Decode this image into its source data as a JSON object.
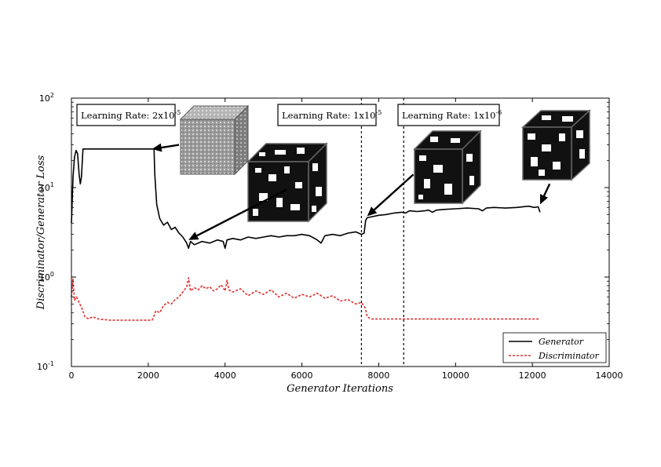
{
  "chart_data": {
    "type": "line",
    "title": "",
    "xlabel": "Generator Iterations",
    "ylabel": "Discriminator/Generator Loss",
    "yscale": "log",
    "xlim": [
      0,
      14000
    ],
    "ylim": [
      0.1,
      100
    ],
    "x_ticks": [
      "0",
      "2000",
      "4000",
      "6000",
      "8000",
      "10000",
      "12000",
      "14000"
    ],
    "y_ticks": [
      {
        "value": 0.1,
        "base": "10",
        "exp": "-1"
      },
      {
        "value": 1,
        "base": "10",
        "exp": "0"
      },
      {
        "value": 10,
        "base": "10",
        "exp": "1"
      },
      {
        "value": 100,
        "base": "10",
        "exp": "2"
      }
    ],
    "legend_position": "lower right",
    "grid": false,
    "series": [
      {
        "name": "Generator",
        "color": "#000000",
        "style": "solid",
        "points": [
          [
            0,
            4.0
          ],
          [
            40,
            13
          ],
          [
            80,
            22
          ],
          [
            120,
            26
          ],
          [
            160,
            24
          ],
          [
            200,
            14
          ],
          [
            230,
            11
          ],
          [
            260,
            13
          ],
          [
            300,
            27
          ],
          [
            2100,
            27
          ],
          [
            2150,
            27
          ],
          [
            2170,
            14
          ],
          [
            2220,
            6.5
          ],
          [
            2300,
            4.5
          ],
          [
            2400,
            3.8
          ],
          [
            2500,
            4.1
          ],
          [
            2600,
            3.4
          ],
          [
            2700,
            3.6
          ],
          [
            2800,
            3.1
          ],
          [
            2900,
            2.8
          ],
          [
            3000,
            2.4
          ],
          [
            3050,
            2.1
          ],
          [
            3100,
            2.5
          ],
          [
            3200,
            2.3
          ],
          [
            3400,
            2.5
          ],
          [
            3600,
            2.4
          ],
          [
            3800,
            2.6
          ],
          [
            3950,
            2.5
          ],
          [
            4000,
            2.1
          ],
          [
            4050,
            2.6
          ],
          [
            4200,
            2.7
          ],
          [
            4400,
            2.6
          ],
          [
            4600,
            2.8
          ],
          [
            4800,
            2.7
          ],
          [
            5000,
            2.8
          ],
          [
            5200,
            2.9
          ],
          [
            5400,
            2.8
          ],
          [
            5600,
            2.9
          ],
          [
            5800,
            2.9
          ],
          [
            6000,
            3.0
          ],
          [
            6200,
            2.9
          ],
          [
            6400,
            2.6
          ],
          [
            6500,
            2.4
          ],
          [
            6600,
            2.9
          ],
          [
            6800,
            3.0
          ],
          [
            7000,
            2.9
          ],
          [
            7200,
            3.1
          ],
          [
            7400,
            3.2
          ],
          [
            7550,
            3.0
          ],
          [
            7620,
            3.1
          ],
          [
            7660,
            4.3
          ],
          [
            7700,
            4.6
          ],
          [
            7800,
            4.7
          ],
          [
            8000,
            4.9
          ],
          [
            8200,
            5.0
          ],
          [
            8400,
            5.2
          ],
          [
            8600,
            5.3
          ],
          [
            8700,
            5.2
          ],
          [
            8800,
            5.5
          ],
          [
            9000,
            5.4
          ],
          [
            9200,
            5.5
          ],
          [
            9300,
            5.6
          ],
          [
            9400,
            5.3
          ],
          [
            9500,
            5.6
          ],
          [
            9700,
            5.7
          ],
          [
            10000,
            5.8
          ],
          [
            10300,
            5.9
          ],
          [
            10600,
            5.8
          ],
          [
            10700,
            5.5
          ],
          [
            10800,
            5.9
          ],
          [
            11000,
            6.0
          ],
          [
            11300,
            5.9
          ],
          [
            11600,
            6.0
          ],
          [
            11900,
            6.2
          ],
          [
            12050,
            6.0
          ],
          [
            12150,
            6.1
          ],
          [
            12200,
            5.3
          ]
        ]
      },
      {
        "name": "Discriminator",
        "color": "#e03030",
        "style": "dashed",
        "points": [
          [
            0,
            0.6
          ],
          [
            40,
            0.95
          ],
          [
            80,
            0.55
          ],
          [
            130,
            0.6
          ],
          [
            200,
            0.52
          ],
          [
            280,
            0.44
          ],
          [
            350,
            0.36
          ],
          [
            450,
            0.34
          ],
          [
            550,
            0.36
          ],
          [
            700,
            0.34
          ],
          [
            1000,
            0.33
          ],
          [
            1500,
            0.33
          ],
          [
            2100,
            0.33
          ],
          [
            2160,
            0.38
          ],
          [
            2200,
            0.42
          ],
          [
            2300,
            0.4
          ],
          [
            2400,
            0.48
          ],
          [
            2500,
            0.52
          ],
          [
            2600,
            0.5
          ],
          [
            2700,
            0.56
          ],
          [
            2800,
            0.6
          ],
          [
            2900,
            0.68
          ],
          [
            3000,
            0.78
          ],
          [
            3050,
            0.98
          ],
          [
            3100,
            0.7
          ],
          [
            3200,
            0.76
          ],
          [
            3300,
            0.72
          ],
          [
            3400,
            0.8
          ],
          [
            3500,
            0.74
          ],
          [
            3600,
            0.78
          ],
          [
            3700,
            0.7
          ],
          [
            3800,
            0.74
          ],
          [
            3900,
            0.82
          ],
          [
            4000,
            0.7
          ],
          [
            4050,
            0.92
          ],
          [
            4100,
            0.72
          ],
          [
            4200,
            0.68
          ],
          [
            4400,
            0.74
          ],
          [
            4600,
            0.62
          ],
          [
            4800,
            0.7
          ],
          [
            5000,
            0.64
          ],
          [
            5200,
            0.72
          ],
          [
            5400,
            0.6
          ],
          [
            5600,
            0.66
          ],
          [
            5800,
            0.58
          ],
          [
            6000,
            0.64
          ],
          [
            6200,
            0.6
          ],
          [
            6400,
            0.66
          ],
          [
            6600,
            0.58
          ],
          [
            6800,
            0.62
          ],
          [
            7000,
            0.54
          ],
          [
            7200,
            0.56
          ],
          [
            7400,
            0.5
          ],
          [
            7550,
            0.52
          ],
          [
            7650,
            0.45
          ],
          [
            7700,
            0.36
          ],
          [
            7800,
            0.34
          ],
          [
            8200,
            0.34
          ],
          [
            9000,
            0.34
          ],
          [
            10000,
            0.34
          ],
          [
            11000,
            0.34
          ],
          [
            12200,
            0.34
          ]
        ]
      }
    ],
    "vlines": [
      7550,
      8650
    ],
    "annotations": [
      {
        "text": "Learning Rate: 2x10",
        "sup": "-5"
      },
      {
        "text": "Learning Rate: 1x10",
        "sup": "-5"
      },
      {
        "text": "Learning Rate: 1x10",
        "sup": "-6"
      }
    ],
    "arrows": [
      {
        "from": [
          2800,
          30
        ],
        "to": [
          2100,
          27
        ]
      },
      {
        "from": [
          5600,
          9.5
        ],
        "to": [
          3050,
          2.6
        ]
      },
      {
        "from": [
          8900,
          14
        ],
        "to": [
          7700,
          4.8
        ]
      },
      {
        "from": [
          12450,
          11
        ],
        "to": [
          12200,
          6.5
        ]
      }
    ]
  },
  "legend": {
    "generator_label": "Generator",
    "discriminator_label": "Discriminator"
  }
}
